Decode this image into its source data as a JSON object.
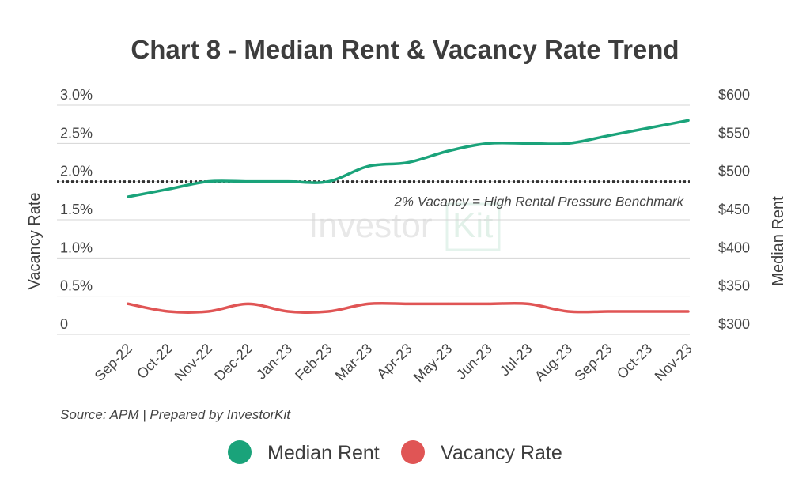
{
  "colors": {
    "median_rent": "#1aa37a",
    "vacancy_rate": "#e05555"
  },
  "chart_data": {
    "type": "line",
    "title": "Chart 8 - Median Rent & Vacancy Rate Trend",
    "categories": [
      "Sep-22",
      "Oct-22",
      "Nov-22",
      "Dec-22",
      "Jan-23",
      "Feb-23",
      "Mar-23",
      "Apr-23",
      "May-23",
      "Jun-23",
      "Jul-23",
      "Aug-23",
      "Sep-23",
      "Oct-23",
      "Nov-23"
    ],
    "y_left": {
      "label": "Vacancy Rate",
      "range": [
        0,
        3.0
      ],
      "ticks": [
        "0",
        "0.5%",
        "1.0%",
        "1.5%",
        "2.0%",
        "2.5%",
        "3.0%"
      ]
    },
    "y_right": {
      "label": "Median Rent",
      "range": [
        300,
        600
      ],
      "ticks": [
        "$300",
        "$350",
        "$400",
        "$450",
        "$500",
        "$550",
        "$600"
      ]
    },
    "series": [
      {
        "name": "Median Rent",
        "axis": "right",
        "values": [
          480,
          490,
          500,
          500,
          500,
          500,
          520,
          525,
          540,
          550,
          550,
          550,
          560,
          570,
          580
        ]
      },
      {
        "name": "Vacancy Rate",
        "axis": "left",
        "values": [
          0.4,
          0.3,
          0.3,
          0.4,
          0.3,
          0.3,
          0.4,
          0.4,
          0.4,
          0.4,
          0.4,
          0.3,
          0.3,
          0.3,
          0.3
        ]
      }
    ],
    "reference_line": {
      "axis": "left",
      "value": 2.0,
      "label": "2% Vacancy = High Rental Pressure Benchmark"
    },
    "grid": true,
    "legend": "bottom-center",
    "source": "Source: APM | Prepared by InvestorKit",
    "watermark": "InvestorKit"
  }
}
